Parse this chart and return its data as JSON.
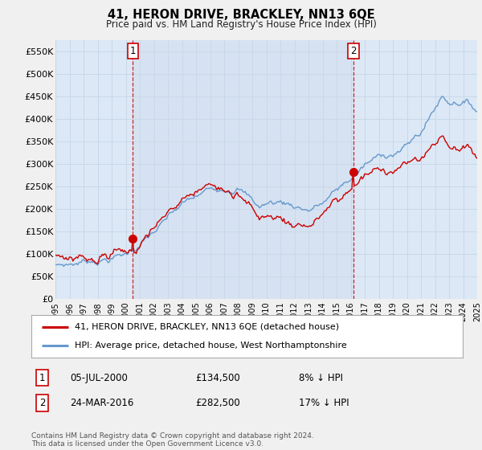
{
  "title": "41, HERON DRIVE, BRACKLEY, NN13 6QE",
  "subtitle": "Price paid vs. HM Land Registry's House Price Index (HPI)",
  "ylim": [
    0,
    575000
  ],
  "yticks": [
    0,
    50000,
    100000,
    150000,
    200000,
    250000,
    300000,
    350000,
    400000,
    450000,
    500000,
    550000
  ],
  "ytick_labels": [
    "£0",
    "£50K",
    "£100K",
    "£150K",
    "£200K",
    "£250K",
    "£300K",
    "£350K",
    "£400K",
    "£450K",
    "£500K",
    "£550K"
  ],
  "background_color": "#f0f0f0",
  "plot_bg_color": "#dce8f5",
  "grid_color": "#c8d8e8",
  "red_color": "#cc0000",
  "blue_color": "#6699cc",
  "transaction1": {
    "date": "05-JUL-2000",
    "price": 134500,
    "price_str": "£134,500",
    "label": "1",
    "x_year": 2000.5,
    "hpi_pct": "8% ↓ HPI"
  },
  "transaction2": {
    "date": "24-MAR-2016",
    "price": 282500,
    "price_str": "£282,500",
    "label": "2",
    "x_year": 2016.2,
    "hpi_pct": "17% ↓ HPI"
  },
  "legend_line1": "41, HERON DRIVE, BRACKLEY, NN13 6QE (detached house)",
  "legend_line2": "HPI: Average price, detached house, West Northamptonshire",
  "footer": "Contains HM Land Registry data © Crown copyright and database right 2024.\nThis data is licensed under the Open Government Licence v3.0.",
  "xmin": 1995,
  "xmax": 2025
}
